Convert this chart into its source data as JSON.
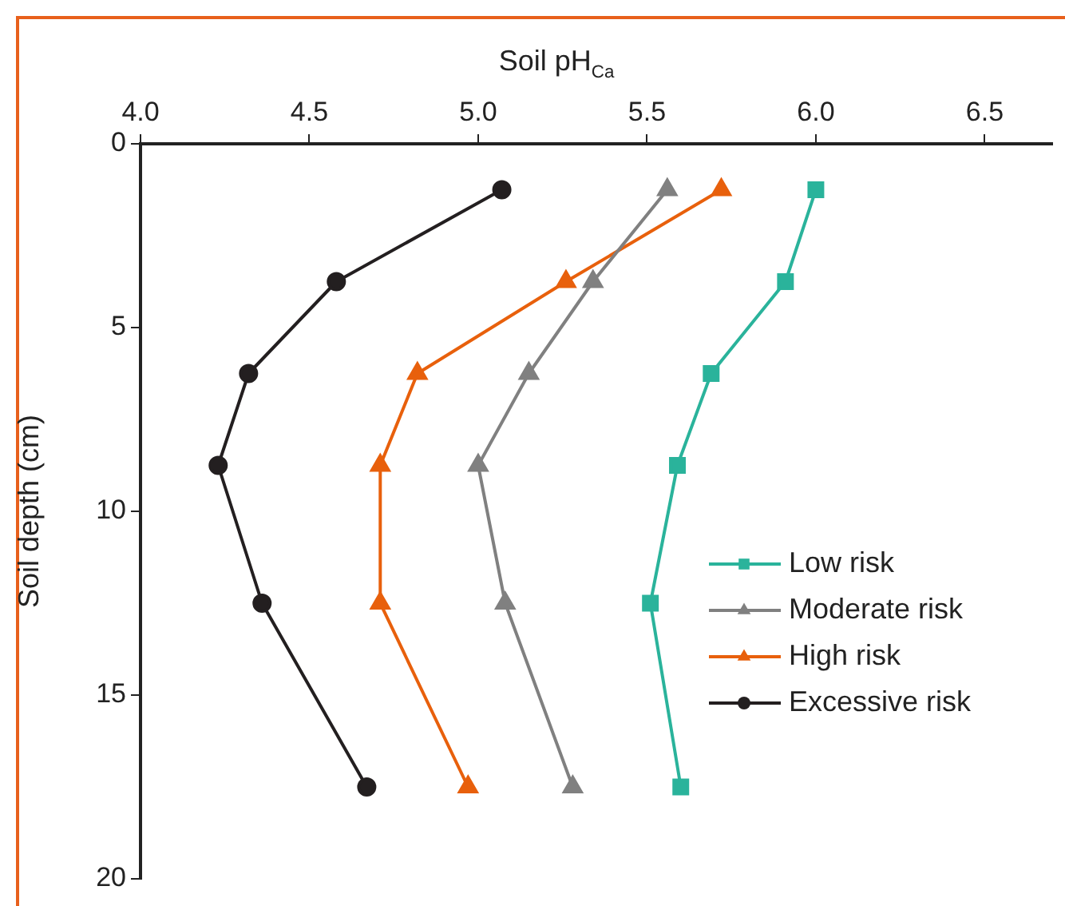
{
  "chart_data": {
    "type": "line",
    "xlabel": "Soil pH$_{Ca}$",
    "ylabel": "Soil depth (cm)",
    "xlim": [
      4.0,
      6.7
    ],
    "xticks": [
      {
        "value": 4.0,
        "label": "4.0"
      },
      {
        "value": 4.5,
        "label": "4.5"
      },
      {
        "value": 5.0,
        "label": "5.0"
      },
      {
        "value": 5.5,
        "label": "5.5"
      },
      {
        "value": 6.0,
        "label": "6.0"
      },
      {
        "value": 6.5,
        "label": "6.5"
      }
    ],
    "ylim": [
      20,
      0
    ],
    "yticks": [
      0,
      5,
      10,
      15,
      20
    ],
    "legend": "right",
    "series": [
      {
        "name": "Low risk",
        "color": "#2ab39b",
        "marker": "square",
        "x": [
          6.0,
          5.91,
          5.69,
          5.59,
          5.51,
          5.6
        ],
        "values": [
          1.25,
          3.75,
          6.25,
          8.75,
          12.5,
          17.5
        ]
      },
      {
        "name": "Moderate risk",
        "color": "#808080",
        "marker": "triangle",
        "x": [
          5.56,
          5.34,
          5.15,
          5.0,
          5.08,
          5.28
        ],
        "values": [
          1.25,
          3.75,
          6.25,
          8.75,
          12.5,
          17.5
        ]
      },
      {
        "name": "High risk",
        "color": "#e8600c",
        "marker": "triangle",
        "x": [
          5.72,
          5.26,
          4.82,
          4.71,
          4.71,
          4.97
        ],
        "values": [
          1.25,
          3.75,
          6.25,
          8.75,
          12.5,
          17.5
        ]
      },
      {
        "name": "Excessive risk",
        "color": "#231f20",
        "marker": "circle",
        "x": [
          5.07,
          4.58,
          4.32,
          4.23,
          4.36,
          4.67
        ],
        "values": [
          1.25,
          3.75,
          6.25,
          8.75,
          12.5,
          17.5
        ]
      }
    ]
  }
}
